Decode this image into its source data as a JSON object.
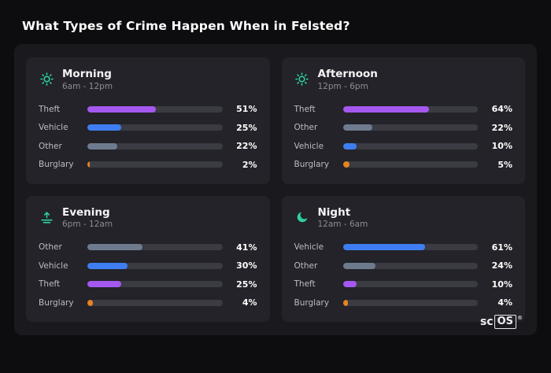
{
  "title": "What Types of Crime Happen When in Felsted?",
  "brand": {
    "prefix": "sc",
    "box": "OS",
    "reg": "®"
  },
  "colors": {
    "theft": "#a558ef",
    "vehicle": "#3e7ef2",
    "other": "#6e7b8f",
    "burglary": "#e8821f",
    "icon_accent": "#2fcfa3",
    "track": "#3b3b43",
    "card_bg": "#232329",
    "panel_bg": "#1a1a1e",
    "page_bg": "#0d0d10"
  },
  "chart_data": {
    "type": "bar",
    "title": "What Types of Crime Happen When in Felsted?",
    "unit": "percent",
    "xlim": [
      0,
      100
    ],
    "legend": false,
    "groups": [
      {
        "title": "Morning",
        "subtitle": "6am - 12pm",
        "icon": "sun-icon",
        "bars": [
          {
            "label": "Theft",
            "value": 51,
            "display": "51%",
            "color": "#a558ef"
          },
          {
            "label": "Vehicle",
            "value": 25,
            "display": "25%",
            "color": "#3e7ef2"
          },
          {
            "label": "Other",
            "value": 22,
            "display": "22%",
            "color": "#6e7b8f"
          },
          {
            "label": "Burglary",
            "value": 2,
            "display": "2%",
            "color": "#e8821f"
          }
        ]
      },
      {
        "title": "Afternoon",
        "subtitle": "12pm - 6pm",
        "icon": "sun-icon",
        "bars": [
          {
            "label": "Theft",
            "value": 64,
            "display": "64%",
            "color": "#a558ef"
          },
          {
            "label": "Other",
            "value": 22,
            "display": "22%",
            "color": "#6e7b8f"
          },
          {
            "label": "Vehicle",
            "value": 10,
            "display": "10%",
            "color": "#3e7ef2"
          },
          {
            "label": "Burglary",
            "value": 5,
            "display": "5%",
            "color": "#e8821f"
          }
        ]
      },
      {
        "title": "Evening",
        "subtitle": "6pm - 12am",
        "icon": "sunset-icon",
        "bars": [
          {
            "label": "Other",
            "value": 41,
            "display": "41%",
            "color": "#6e7b8f"
          },
          {
            "label": "Vehicle",
            "value": 30,
            "display": "30%",
            "color": "#3e7ef2"
          },
          {
            "label": "Theft",
            "value": 25,
            "display": "25%",
            "color": "#a558ef"
          },
          {
            "label": "Burglary",
            "value": 4,
            "display": "4%",
            "color": "#e8821f"
          }
        ]
      },
      {
        "title": "Night",
        "subtitle": "12am - 6am",
        "icon": "moon-icon",
        "bars": [
          {
            "label": "Vehicle",
            "value": 61,
            "display": "61%",
            "color": "#3e7ef2"
          },
          {
            "label": "Other",
            "value": 24,
            "display": "24%",
            "color": "#6e7b8f"
          },
          {
            "label": "Theft",
            "value": 10,
            "display": "10%",
            "color": "#a558ef"
          },
          {
            "label": "Burglary",
            "value": 4,
            "display": "4%",
            "color": "#e8821f"
          }
        ]
      }
    ]
  }
}
